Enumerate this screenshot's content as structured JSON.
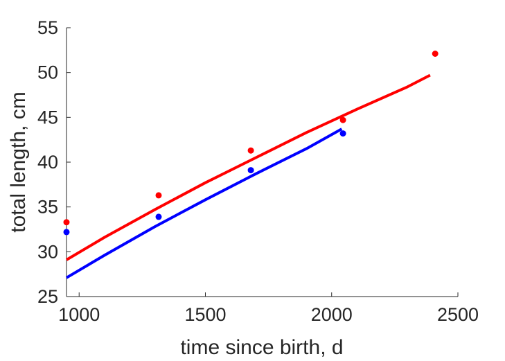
{
  "chart_data": {
    "type": "scatter",
    "title": "",
    "xlabel": "time since birth, d",
    "ylabel": "total length, cm",
    "xlim": [
      950,
      2500
    ],
    "ylim": [
      25,
      55
    ],
    "xticks": [
      1000,
      1500,
      2000,
      2500
    ],
    "yticks": [
      25,
      30,
      35,
      40,
      45,
      50,
      55
    ],
    "grid": false,
    "legend": "none",
    "series": [
      {
        "color": "#ff0000",
        "points": {
          "x": [
            950,
            1315,
            1680,
            2045,
            2410
          ],
          "y": [
            33.3,
            36.3,
            41.3,
            44.7,
            52.1
          ]
        },
        "fit": {
          "x": [
            950,
            1100,
            1300,
            1500,
            1700,
            1900,
            2100,
            2300,
            2390
          ],
          "y": [
            29.1,
            31.6,
            34.7,
            37.7,
            40.5,
            43.3,
            45.9,
            48.4,
            49.7
          ]
        }
      },
      {
        "color": "#0000ff",
        "points": {
          "x": [
            950,
            1315,
            1680,
            2045
          ],
          "y": [
            32.2,
            33.9,
            39.1,
            43.2
          ]
        },
        "fit": {
          "x": [
            950,
            1100,
            1300,
            1500,
            1700,
            1900,
            2040
          ],
          "y": [
            27.1,
            29.6,
            32.8,
            35.8,
            38.7,
            41.5,
            43.7
          ]
        }
      }
    ]
  }
}
